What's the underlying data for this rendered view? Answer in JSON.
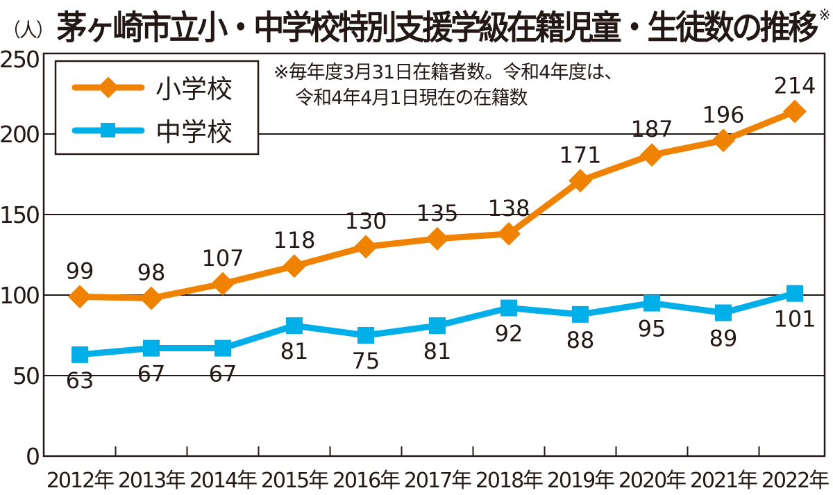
{
  "title": {
    "unit": "（人）",
    "main": "茅ヶ崎市立小・中学校特別支援学級在籍児童・生徒数の推移",
    "mark": "※"
  },
  "note": {
    "line1": "※毎年度3月31日在籍者数。令和4年度は、",
    "line2": "令和4年4月1日現在の在籍数"
  },
  "chart_data": {
    "type": "line",
    "title": "茅ヶ崎市立小・中学校特別支援学級在籍児童・生徒数の推移※",
    "ylabel": "（人）",
    "xlabel": "",
    "ylim": [
      0,
      250
    ],
    "yticks": [
      0,
      50,
      100,
      150,
      200,
      250
    ],
    "grid": true,
    "legend": "top-left",
    "categories": [
      "2012年",
      "2013年",
      "2014年",
      "2015年",
      "2016年",
      "2017年",
      "2018年",
      "2019年",
      "2020年",
      "2021年",
      "2022年"
    ],
    "series": [
      {
        "name": "小学校",
        "color": "#ef8200",
        "marker": "diamond",
        "values": [
          99,
          98,
          107,
          118,
          130,
          135,
          138,
          171,
          187,
          196,
          214
        ],
        "label_position": "above"
      },
      {
        "name": "中学校",
        "color": "#00aee8",
        "marker": "square",
        "values": [
          63,
          67,
          67,
          81,
          75,
          81,
          92,
          88,
          95,
          89,
          101
        ],
        "label_position": "below"
      }
    ]
  }
}
